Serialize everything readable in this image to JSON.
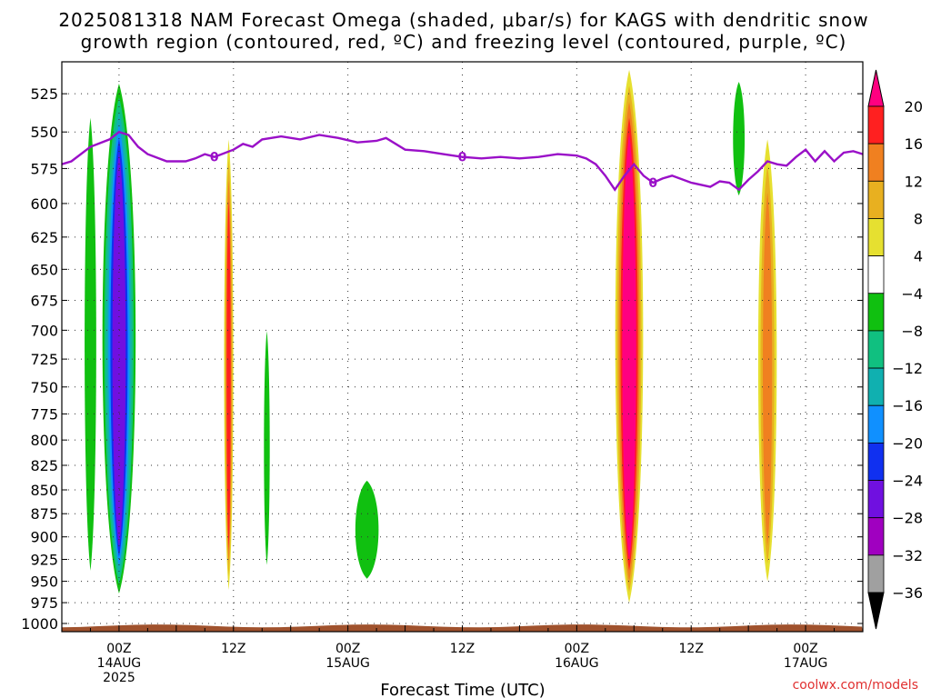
{
  "header": {
    "title_line1": "2025081318 NAM Forecast Omega (shaded, μbar/s) for KAGS with dendritic snow",
    "title_line2": "growth region (contoured, red, ºC) and freezing level (contoured, purple, ºC)"
  },
  "footer": {
    "xlabel": "Forecast Time (UTC)",
    "credit": "coolwx.com/models"
  },
  "chart_data": {
    "type": "heatmap",
    "title": "2025081318 NAM Forecast Omega (shaded, μbar/s) for KAGS with dendritic snow growth region (contoured, red, ºC) and freezing level (contoured, purple, ºC)",
    "xlabel": "Forecast Time (UTC)",
    "ylabel": "",
    "x_unit": "forecast hour",
    "xlim": [
      -12,
      72
    ],
    "y_scale": "log-pressure",
    "ylim": [
      1010,
      505
    ],
    "y_ticks": [
      525,
      550,
      575,
      600,
      625,
      650,
      675,
      700,
      725,
      750,
      775,
      800,
      825,
      850,
      875,
      900,
      925,
      950,
      975,
      1000
    ],
    "x_ticks": [
      {
        "hour": -6,
        "lines": [
          "00Z",
          "14AUG",
          "2025"
        ]
      },
      {
        "hour": 6,
        "lines": [
          "12Z"
        ]
      },
      {
        "hour": 18,
        "lines": [
          "00Z",
          "15AUG"
        ]
      },
      {
        "hour": 30,
        "lines": [
          "12Z"
        ]
      },
      {
        "hour": 42,
        "lines": [
          "00Z",
          "16AUG"
        ]
      },
      {
        "hour": 54,
        "lines": [
          "12Z"
        ]
      },
      {
        "hour": 66,
        "lines": [
          "00Z",
          "17AUG"
        ]
      }
    ],
    "grid": true,
    "colorbar": {
      "levels": [
        -36,
        -32,
        -28,
        -24,
        -20,
        -16,
        -12,
        -8,
        -4,
        4,
        8,
        12,
        16,
        20
      ],
      "labels": [
        "20",
        "16",
        "12",
        "8",
        "4",
        "−4",
        "−8",
        "−12",
        "−16",
        "−20",
        "−24",
        "−28",
        "−32",
        "−36"
      ],
      "colors_top_to_bottom": [
        "#ff0080",
        "#ff2020",
        "#f08020",
        "#e8b020",
        "#e6e030",
        "#ffffff",
        "#10c010",
        "#10c080",
        "#10b0b0",
        "#1090ff",
        "#1030f0",
        "#7010e0",
        "#a000c0",
        "#a0a0a0",
        "#000000"
      ]
    },
    "omega_features": [
      {
        "name": "ascent band",
        "hour_range": [
          -10,
          -8
        ],
        "pressure_range": [
          975,
          510
        ],
        "omega_min": -8
      },
      {
        "name": "strong ascent core",
        "hour_range": [
          -8,
          -4
        ],
        "pressure_range": [
          975,
          510
        ],
        "omega_min": -28
      },
      {
        "name": "weak descent",
        "hour_range": [
          5,
          6
        ],
        "pressure_range": [
          960,
          555
        ],
        "omega_max": 16
      },
      {
        "name": "weak ascent",
        "hour_range": [
          9,
          10
        ],
        "pressure_range": [
          950,
          680
        ],
        "omega_min": -8
      },
      {
        "name": "weak ascent",
        "hour_range": [
          18,
          22
        ],
        "pressure_range": [
          955,
          830
        ],
        "omega_min": -8
      },
      {
        "name": "strong descent",
        "hour_range": [
          46,
          49
        ],
        "pressure_range": [
          975,
          510
        ],
        "omega_max": 24
      },
      {
        "name": "weak ascent",
        "hour_range": [
          58,
          60
        ],
        "pressure_range": [
          600,
          510
        ],
        "omega_min": -8
      },
      {
        "name": "weak descent",
        "hour_range": [
          61,
          63
        ],
        "pressure_range": [
          950,
          555
        ],
        "omega_max": 12
      }
    ],
    "freezing_level": {
      "label": "0",
      "hour": [
        -12,
        -11,
        -9,
        -7,
        -6,
        -5,
        -4,
        -3,
        -1,
        1,
        2,
        3,
        4,
        6,
        7,
        8,
        9,
        11,
        13,
        15,
        17,
        19,
        21,
        22,
        24,
        26,
        28,
        30,
        32,
        34,
        36,
        38,
        40,
        42,
        43,
        44,
        45,
        46,
        47,
        48,
        49,
        50,
        51,
        52,
        54,
        56,
        57,
        58,
        59,
        60,
        61,
        62,
        63,
        64,
        65,
        66,
        67,
        68,
        69,
        70,
        71,
        72
      ],
      "pressure": [
        572,
        570,
        560,
        555,
        550,
        552,
        560,
        565,
        570,
        570,
        568,
        565,
        567,
        562,
        558,
        560,
        555,
        553,
        555,
        552,
        554,
        557,
        556,
        554,
        562,
        563,
        565,
        567,
        568,
        567,
        568,
        567,
        565,
        566,
        568,
        572,
        580,
        590,
        580,
        572,
        580,
        585,
        582,
        580,
        585,
        588,
        584,
        585,
        590,
        583,
        577,
        570,
        572,
        573,
        567,
        562,
        570,
        563,
        570,
        564,
        563,
        565
      ]
    },
    "terrain_surface_hPa": 1003
  }
}
